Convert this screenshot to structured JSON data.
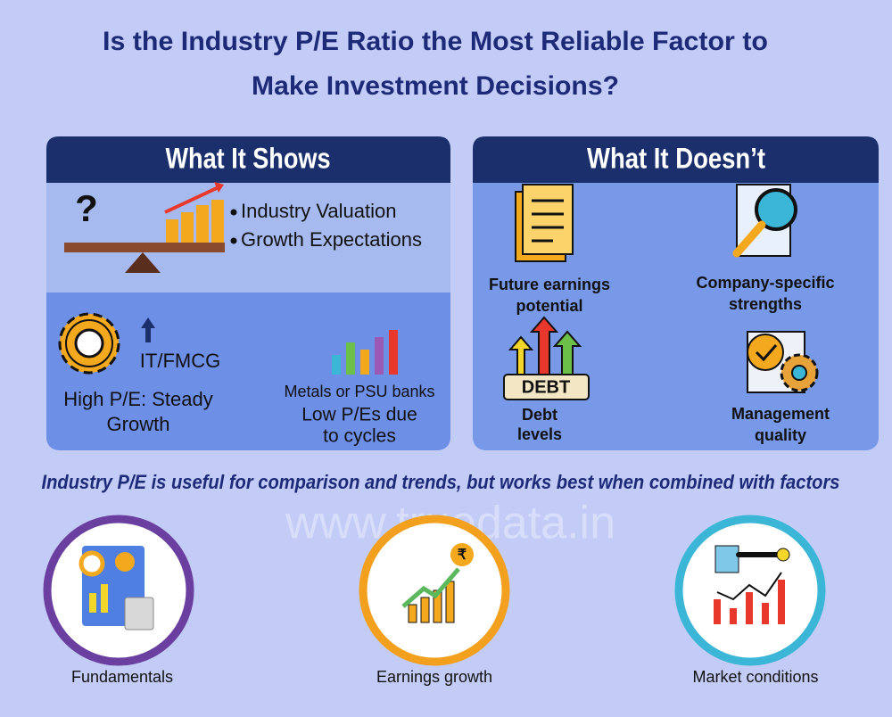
{
  "header": {
    "title_lines": [
      "Is the Industry P/E Ratio the Most Reliable Factor to",
      "Make Investment Decisions?"
    ]
  },
  "shows_panel": {
    "heading": "What It Shows",
    "icon_text": "?",
    "bullets": [
      "Industry Valuation",
      "Growth Expectations"
    ],
    "high_pe": {
      "tag": "IT/FMCG",
      "lines": [
        "High P/E: Steady",
        "Growth"
      ]
    },
    "low_pe": {
      "tag": "Metals or PSU banks",
      "lines": [
        "Low P/Es due",
        "to cycles"
      ]
    }
  },
  "doesnt_panel": {
    "heading": "What It Doesn’t",
    "debt_icon_text": "DEBT",
    "items": [
      {
        "lines": [
          "Future earnings",
          "potential"
        ]
      },
      {
        "lines": [
          "Company-specific",
          "strengths"
        ]
      },
      {
        "lines": [
          "Debt",
          "levels"
        ]
      },
      {
        "lines": [
          "Management",
          "quality"
        ]
      }
    ]
  },
  "tagline": "Industry P/E is useful for comparison and trends, but works best when combined with factors",
  "watermark": "www.truedata.in",
  "factors": {
    "rupee_icon_text": "₹",
    "items": [
      "Fundamentals",
      "Earnings growth",
      "Market conditions"
    ]
  }
}
